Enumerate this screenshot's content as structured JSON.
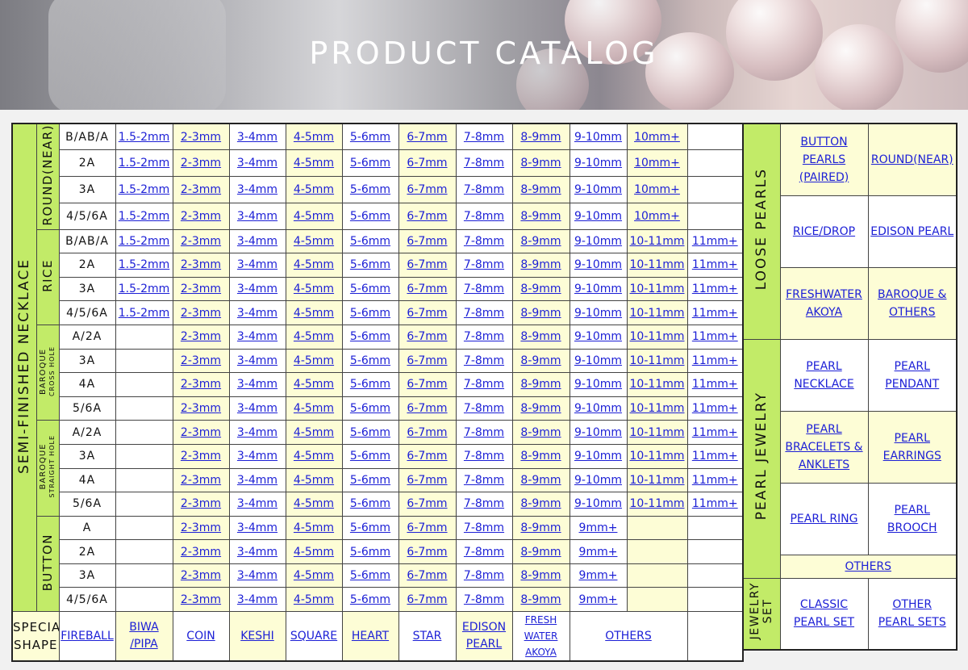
{
  "title": "PRODUCT CATALOG",
  "section_main": "SEMI-FINISHED NECKLACE",
  "groups": {
    "round": "ROUND(NEAR)",
    "rice": "RICE",
    "baroque_cross": "BAROQUE",
    "baroque_cross_sub": "CROSS HOLE",
    "baroque_straight": "BAROQUE",
    "baroque_straight_sub": "STRAIGHT HOLE",
    "button": "BUTTON"
  },
  "grades": {
    "round": [
      "B/AB/A",
      "2A",
      "3A",
      "4/5/6A"
    ],
    "rice": [
      "B/AB/A",
      "2A",
      "3A",
      "4/5/6A"
    ],
    "baroque_cross": [
      "A/2A",
      "3A",
      "4A",
      "5/6A"
    ],
    "baroque_straight": [
      "A/2A",
      "3A",
      "4A",
      "5/6A"
    ],
    "button": [
      "A",
      "2A",
      "3A",
      "4/5/6A"
    ]
  },
  "sizes": {
    "round": [
      "1.5-2mm",
      "2-3mm",
      "3-4mm",
      "4-5mm",
      "5-6mm",
      "6-7mm",
      "7-8mm",
      "8-9mm",
      "9-10mm",
      "10mm+"
    ],
    "rice": [
      "1.5-2mm",
      "2-3mm",
      "3-4mm",
      "4-5mm",
      "5-6mm",
      "6-7mm",
      "7-8mm",
      "8-9mm",
      "9-10mm",
      "10-11mm",
      "11mm+"
    ],
    "baroque": [
      "2-3mm",
      "3-4mm",
      "4-5mm",
      "5-6mm",
      "6-7mm",
      "7-8mm",
      "8-9mm",
      "9-10mm",
      "10-11mm",
      "11mm+"
    ],
    "button": [
      "2-3mm",
      "3-4mm",
      "4-5mm",
      "5-6mm",
      "6-7mm",
      "7-8mm",
      "8-9mm",
      "9mm+"
    ]
  },
  "special": {
    "label_line1": "SPECIAL",
    "label_line2": "SHAPE",
    "items": [
      "FIREBALL",
      "BIWA",
      "/PIPA",
      "COIN",
      "KESHI",
      "SQUARE",
      "HEART",
      "STAR",
      "EDISON",
      "PEARL",
      "FRESH",
      "WATER",
      "AKOYA",
      "OTHERS"
    ]
  },
  "side": {
    "loose_label": "LOOSE PEARLS",
    "jewelry_label": "PEARL JEWELRY",
    "set_label_1": "JEWELRY",
    "set_label_2": "SET",
    "loose": [
      "BUTTON",
      "PEARLS",
      "(PAIRED)",
      "ROUND(NEAR)",
      "RICE/DROP",
      "EDISON PEARL",
      "FRESHWATER",
      "AKOYA",
      "BAROQUE &",
      "OTHERS"
    ],
    "jewelry": [
      "PEARL",
      "NECKLACE",
      "PEARL",
      "PENDANT",
      "PEARL",
      "BRACELETS &",
      "ANKLETS",
      "PEARL",
      "EARRINGS",
      "PEARL RING",
      "PEARL",
      "BROOCH",
      "OTHERS"
    ],
    "sets": [
      "CLASSIC",
      "PEARL SET",
      "OTHER",
      "PEARL SETS"
    ]
  },
  "colors": {
    "link": "#1c1fd6",
    "cell_yellow": "#fdfdd6",
    "label_green": "#c2eb68"
  }
}
